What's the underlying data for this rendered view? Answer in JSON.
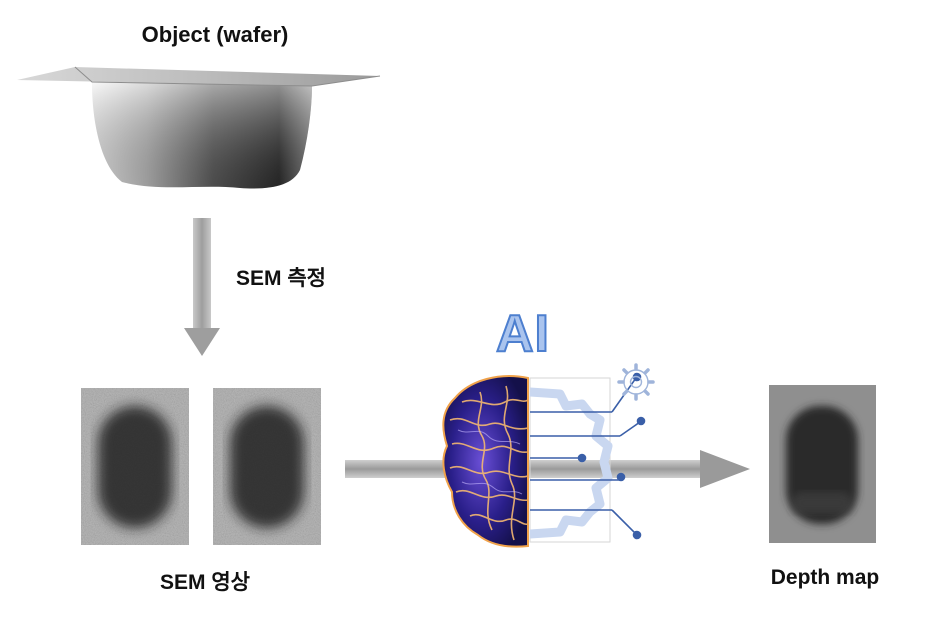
{
  "labels": {
    "object": "Object (wafer)",
    "sem_measurement": "SEM 측정",
    "sem_image": "SEM 영상",
    "depth_map": "Depth map",
    "ai": "AI"
  },
  "colors": {
    "arrow_gray": "#a9a9a9",
    "ai_fill": "#aac4ee",
    "ai_stroke": "#4d7fcf",
    "circuit_blue": "#3a5fa8",
    "brain_dark": "#1e1a6e",
    "brain_glow": "#f0a24a"
  },
  "icons": {
    "brain": "brain-icon",
    "gear": "gear-icon",
    "circuit": "circuit-icon"
  }
}
